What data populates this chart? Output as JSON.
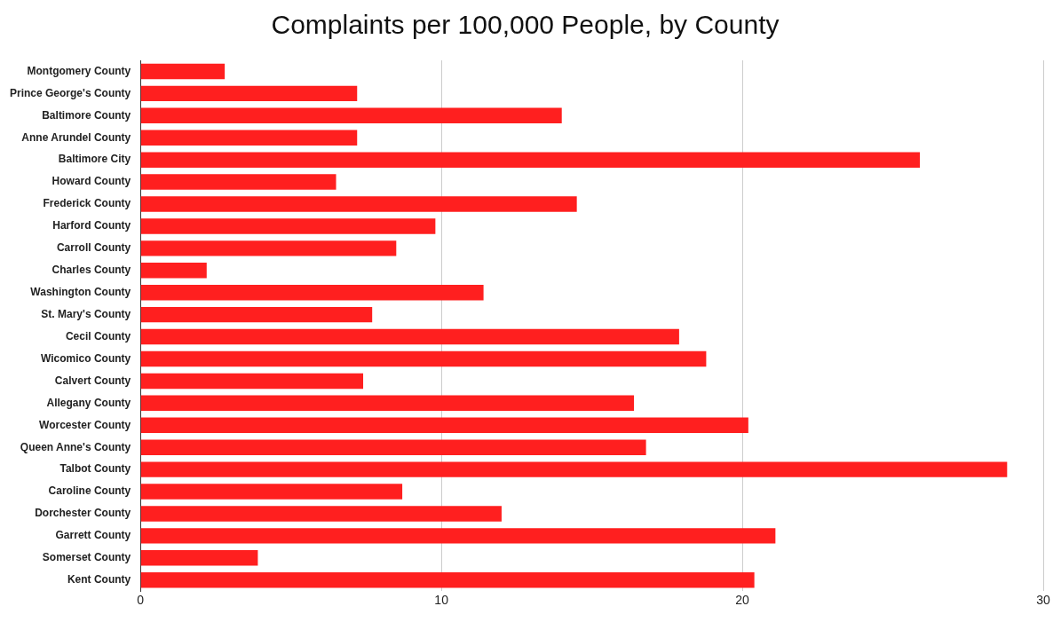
{
  "chart_data": {
    "type": "bar",
    "orientation": "horizontal",
    "title": "Complaints per 100,000 People, by County",
    "categories": [
      "Montgomery County",
      "Prince George's County",
      "Baltimore County",
      "Anne Arundel County",
      "Baltimore City",
      "Howard County",
      "Frederick County",
      "Harford County",
      "Carroll County",
      "Charles County",
      "Washington County",
      "St. Mary's County",
      "Cecil County",
      "Wicomico County",
      "Calvert County",
      "Allegany County",
      "Worcester County",
      "Queen Anne's County",
      "Talbot County",
      "Caroline County",
      "Dorchester County",
      "Garrett County",
      "Somerset County",
      "Kent County"
    ],
    "values": [
      2.8,
      7.2,
      14.0,
      7.2,
      25.9,
      6.5,
      14.5,
      9.8,
      8.5,
      2.2,
      11.4,
      7.7,
      17.9,
      18.8,
      7.4,
      16.4,
      20.2,
      16.8,
      28.8,
      8.7,
      12.0,
      21.1,
      3.9,
      20.4
    ],
    "color": "#ff1f1f",
    "xlim": [
      0,
      30
    ],
    "xticks": [
      0,
      10,
      20,
      30
    ],
    "grid": "x"
  }
}
